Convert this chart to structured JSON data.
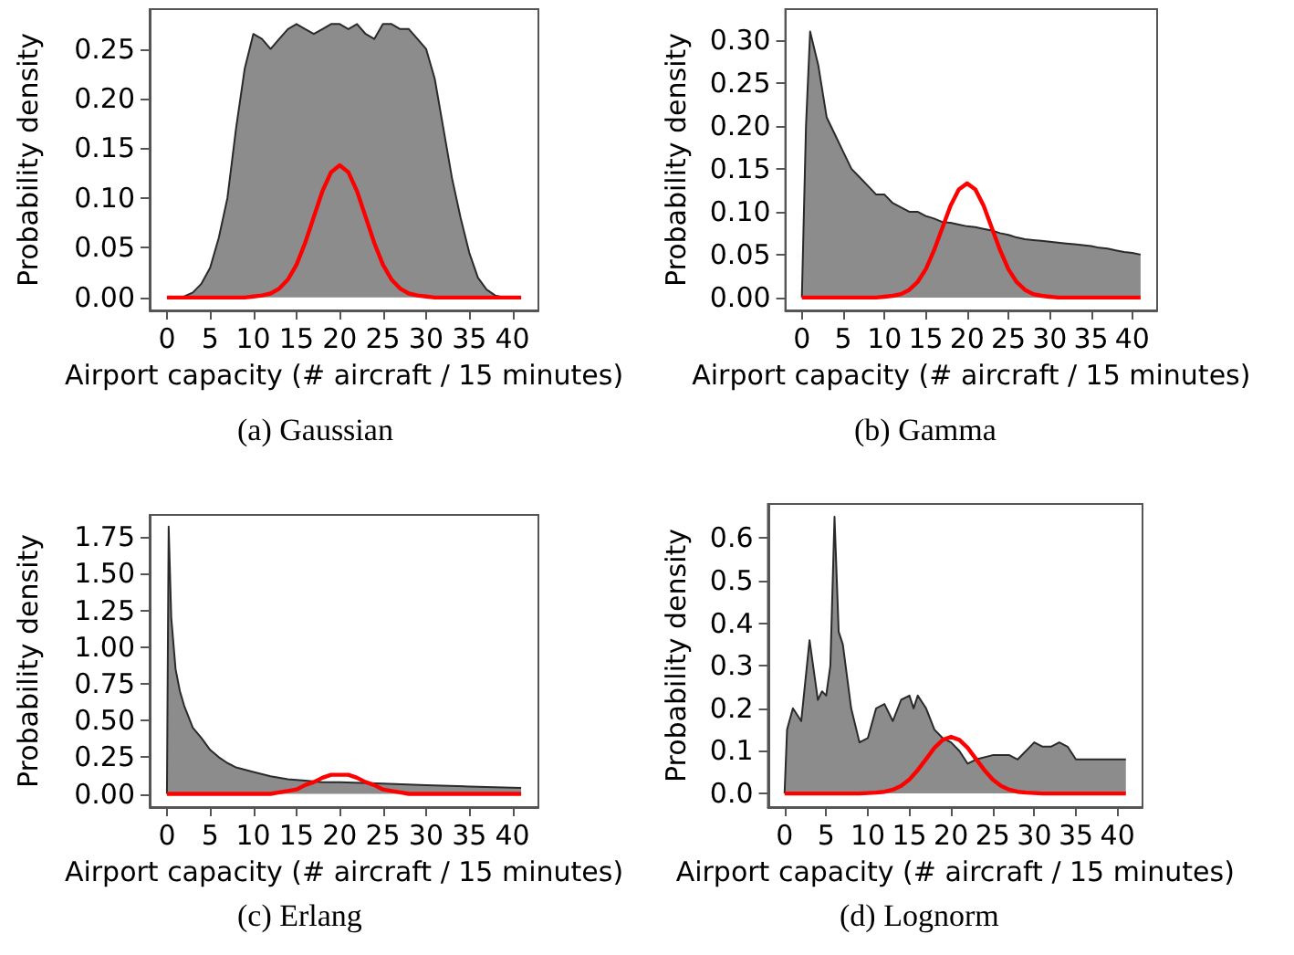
{
  "chart_data": [
    {
      "type": "line",
      "title": "(a) Gaussian",
      "xlabel": "Airport capacity (# aircraft / 15 minutes)",
      "ylabel": "Probability density",
      "xlim": [
        -2,
        43
      ],
      "xticks": [
        0,
        5,
        10,
        15,
        20,
        25,
        30,
        35,
        40
      ],
      "ylim": [
        -0.013,
        0.29
      ],
      "yticks": [
        {
          "value": 0,
          "label": "0.00"
        },
        {
          "value": 0.05,
          "label": "0.05"
        },
        {
          "value": 0.1,
          "label": "0.10"
        },
        {
          "value": 0.15,
          "label": "0.15"
        },
        {
          "value": 0.2,
          "label": "0.20"
        },
        {
          "value": 0.25,
          "label": "0.25"
        }
      ],
      "marker": "none",
      "series": [
        {
          "type": "area",
          "color": "#808080",
          "x": [
            0,
            1,
            2,
            3,
            4,
            5,
            6,
            7,
            8,
            9,
            10,
            11,
            12,
            13,
            14,
            15,
            16,
            17,
            18,
            19,
            20,
            21,
            22,
            23,
            24,
            25,
            26,
            27,
            28,
            29,
            30,
            31,
            32,
            33,
            34,
            35,
            36,
            37,
            38,
            39,
            40,
            41
          ],
          "values": [
            0,
            0,
            0.001,
            0.005,
            0.014,
            0.03,
            0.06,
            0.1,
            0.17,
            0.23,
            0.265,
            0.26,
            0.25,
            0.26,
            0.27,
            0.275,
            0.27,
            0.265,
            0.27,
            0.275,
            0.275,
            0.27,
            0.275,
            0.265,
            0.26,
            0.275,
            0.275,
            0.27,
            0.27,
            0.26,
            0.25,
            0.22,
            0.17,
            0.12,
            0.08,
            0.045,
            0.02,
            0.008,
            0.002,
            0,
            0,
            0
          ]
        },
        {
          "type": "line",
          "color": "#ff0000",
          "x": [
            0,
            1,
            2,
            3,
            4,
            5,
            6,
            7,
            8,
            9,
            10,
            11,
            12,
            13,
            14,
            15,
            16,
            17,
            18,
            19,
            20,
            21,
            22,
            23,
            24,
            25,
            26,
            27,
            28,
            29,
            30,
            31,
            32,
            33,
            34,
            35,
            36,
            37,
            38,
            39,
            40,
            41
          ],
          "values": [
            0,
            0,
            0,
            0,
            0,
            0,
            0,
            0,
            0,
            0,
            0.001,
            0.002,
            0.004,
            0.009,
            0.018,
            0.033,
            0.055,
            0.081,
            0.107,
            0.126,
            0.133,
            0.126,
            0.107,
            0.081,
            0.055,
            0.033,
            0.018,
            0.009,
            0.004,
            0.002,
            0.001,
            0,
            0,
            0,
            0,
            0,
            0,
            0,
            0,
            0,
            0,
            0
          ]
        }
      ]
    },
    {
      "type": "line",
      "title": "(b) Gamma",
      "xlabel": "Airport capacity (# aircraft / 15 minutes)",
      "ylabel": "Probability density",
      "xlim": [
        -2,
        43
      ],
      "xticks": [
        0,
        5,
        10,
        15,
        20,
        25,
        30,
        35,
        40
      ],
      "ylim": [
        -0.015,
        0.336
      ],
      "yticks": [
        {
          "value": 0,
          "label": "0.00"
        },
        {
          "value": 0.05,
          "label": "0.05"
        },
        {
          "value": 0.1,
          "label": "0.10"
        },
        {
          "value": 0.15,
          "label": "0.15"
        },
        {
          "value": 0.2,
          "label": "0.20"
        },
        {
          "value": 0.25,
          "label": "0.25"
        },
        {
          "value": 0.3,
          "label": "0.30"
        }
      ],
      "marker": "none",
      "series": [
        {
          "type": "area",
          "color": "#808080",
          "x": [
            0,
            0.5,
            1,
            2,
            3,
            4,
            5,
            6,
            7,
            8,
            9,
            10,
            11,
            12,
            13,
            14,
            15,
            16,
            17,
            18,
            19,
            20,
            21,
            22,
            23,
            24,
            25,
            26,
            27,
            28,
            29,
            30,
            31,
            32,
            33,
            34,
            35,
            36,
            37,
            38,
            39,
            40,
            41
          ],
          "values": [
            0,
            0.2,
            0.31,
            0.27,
            0.21,
            0.19,
            0.17,
            0.15,
            0.14,
            0.13,
            0.12,
            0.12,
            0.11,
            0.105,
            0.1,
            0.1,
            0.095,
            0.092,
            0.088,
            0.087,
            0.085,
            0.083,
            0.082,
            0.08,
            0.078,
            0.075,
            0.073,
            0.07,
            0.068,
            0.067,
            0.066,
            0.065,
            0.064,
            0.063,
            0.062,
            0.061,
            0.06,
            0.058,
            0.057,
            0.055,
            0.053,
            0.052,
            0.05
          ]
        },
        {
          "type": "line",
          "color": "#ff0000",
          "x": [
            0,
            1,
            2,
            3,
            4,
            5,
            6,
            7,
            8,
            9,
            10,
            11,
            12,
            13,
            14,
            15,
            16,
            17,
            18,
            19,
            20,
            21,
            22,
            23,
            24,
            25,
            26,
            27,
            28,
            29,
            30,
            31,
            32,
            33,
            34,
            35,
            36,
            37,
            38,
            39,
            40,
            41
          ],
          "values": [
            0,
            0,
            0,
            0,
            0,
            0,
            0,
            0,
            0,
            0,
            0.001,
            0.002,
            0.004,
            0.009,
            0.018,
            0.033,
            0.055,
            0.081,
            0.107,
            0.126,
            0.133,
            0.126,
            0.107,
            0.081,
            0.055,
            0.033,
            0.018,
            0.009,
            0.004,
            0.002,
            0.001,
            0,
            0,
            0,
            0,
            0,
            0,
            0,
            0,
            0,
            0,
            0
          ]
        }
      ]
    },
    {
      "type": "line",
      "title": "(c) Erlang",
      "xlabel": "Airport capacity (# aircraft / 15 minutes)",
      "ylabel": "Probability density",
      "xlim": [
        -2,
        43
      ],
      "xticks": [
        0,
        5,
        10,
        15,
        20,
        25,
        30,
        35,
        40
      ],
      "ylim": [
        -0.09,
        1.9
      ],
      "yticks": [
        {
          "value": 0,
          "label": "0.00"
        },
        {
          "value": 0.25,
          "label": "0.25"
        },
        {
          "value": 0.5,
          "label": "0.50"
        },
        {
          "value": 0.75,
          "label": "0.75"
        },
        {
          "value": 1,
          "label": "1.00"
        },
        {
          "value": 1.25,
          "label": "1.25"
        },
        {
          "value": 1.5,
          "label": "1.50"
        },
        {
          "value": 1.75,
          "label": "1.75"
        }
      ],
      "marker": "none",
      "series": [
        {
          "type": "area",
          "color": "#808080",
          "x": [
            0,
            0.2,
            0.5,
            1,
            1.5,
            2,
            3,
            4,
            5,
            6,
            7,
            8,
            10,
            12,
            14,
            16,
            18,
            20,
            25,
            30,
            35,
            41
          ],
          "values": [
            0,
            1.82,
            1.2,
            0.85,
            0.7,
            0.6,
            0.45,
            0.38,
            0.3,
            0.25,
            0.21,
            0.18,
            0.15,
            0.12,
            0.1,
            0.09,
            0.08,
            0.08,
            0.07,
            0.06,
            0.05,
            0.04
          ]
        },
        {
          "type": "line",
          "color": "#ff0000",
          "x": [
            0,
            1,
            2,
            3,
            4,
            5,
            6,
            7,
            8,
            9,
            10,
            11,
            12,
            13,
            14,
            15,
            16,
            17,
            18,
            19,
            20,
            21,
            22,
            23,
            24,
            25,
            26,
            27,
            28,
            29,
            30,
            31,
            32,
            33,
            34,
            35,
            36,
            37,
            38,
            39,
            40,
            41
          ],
          "values": [
            0,
            0,
            0,
            0,
            0,
            0,
            0,
            0,
            0,
            0,
            0,
            0,
            0,
            0.01,
            0.02,
            0.03,
            0.06,
            0.08,
            0.11,
            0.13,
            0.13,
            0.13,
            0.11,
            0.08,
            0.06,
            0.03,
            0.02,
            0.01,
            0,
            0,
            0,
            0,
            0,
            0,
            0,
            0,
            0,
            0,
            0,
            0,
            0,
            0
          ]
        }
      ]
    },
    {
      "type": "line",
      "title": "(d) Lognorm",
      "xlabel": "Airport capacity (# aircraft / 15 minutes)",
      "ylabel": "Probability density",
      "xlim": [
        -2,
        43
      ],
      "xticks": [
        0,
        5,
        10,
        15,
        20,
        25,
        30,
        35,
        40
      ],
      "ylim": [
        -0.032,
        0.68
      ],
      "yticks": [
        {
          "value": 0,
          "label": "0.0"
        },
        {
          "value": 0.1,
          "label": "0.1"
        },
        {
          "value": 0.2,
          "label": "0.2"
        },
        {
          "value": 0.3,
          "label": "0.3"
        },
        {
          "value": 0.4,
          "label": "0.4"
        },
        {
          "value": 0.5,
          "label": "0.5"
        },
        {
          "value": 0.6,
          "label": "0.6"
        }
      ],
      "marker": "none",
      "series": [
        {
          "type": "area",
          "color": "#808080",
          "x": [
            0,
            0.3,
            1,
            2,
            3,
            4,
            4.5,
            5,
            5.5,
            6,
            6.5,
            7,
            8,
            9,
            10,
            11,
            12,
            13,
            14,
            15,
            15.5,
            16,
            17,
            18,
            19,
            20,
            21,
            22,
            23,
            25,
            27,
            28,
            30,
            31,
            32,
            33,
            34,
            35,
            37,
            39,
            41
          ],
          "values": [
            0,
            0.15,
            0.2,
            0.17,
            0.36,
            0.22,
            0.24,
            0.23,
            0.3,
            0.65,
            0.38,
            0.35,
            0.2,
            0.12,
            0.13,
            0.2,
            0.21,
            0.17,
            0.22,
            0.23,
            0.2,
            0.23,
            0.2,
            0.15,
            0.13,
            0.12,
            0.1,
            0.07,
            0.08,
            0.09,
            0.09,
            0.08,
            0.12,
            0.11,
            0.11,
            0.12,
            0.11,
            0.08,
            0.08,
            0.08,
            0.08
          ]
        },
        {
          "type": "line",
          "color": "#ff0000",
          "x": [
            0,
            1,
            2,
            3,
            4,
            5,
            6,
            7,
            8,
            9,
            10,
            11,
            12,
            13,
            14,
            15,
            16,
            17,
            18,
            19,
            20,
            21,
            22,
            23,
            24,
            25,
            26,
            27,
            28,
            29,
            30,
            31,
            32,
            33,
            34,
            35,
            36,
            37,
            38,
            39,
            40,
            41
          ],
          "values": [
            0,
            0,
            0,
            0,
            0,
            0,
            0,
            0,
            0,
            0,
            0.001,
            0.002,
            0.004,
            0.009,
            0.018,
            0.033,
            0.055,
            0.081,
            0.107,
            0.126,
            0.133,
            0.126,
            0.107,
            0.081,
            0.055,
            0.033,
            0.018,
            0.009,
            0.004,
            0.002,
            0.001,
            0,
            0,
            0,
            0,
            0,
            0,
            0,
            0,
            0,
            0,
            0
          ]
        }
      ]
    }
  ]
}
